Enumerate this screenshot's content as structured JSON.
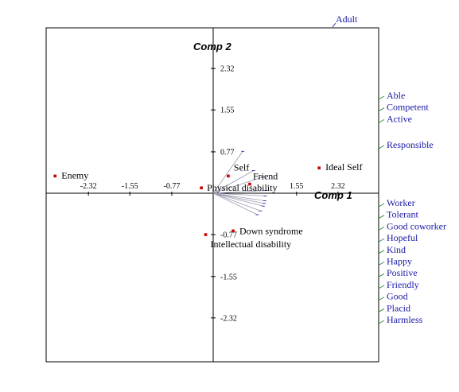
{
  "chart_data": {
    "type": "scatter",
    "title": "",
    "xlabel": "Comp 1",
    "ylabel": "Comp 2",
    "xlim": [
      -3.1,
      3.1
    ],
    "ylim": [
      -3.1,
      3.1
    ],
    "x_ticks": [
      {
        "value": -2.32,
        "label": "-2.32"
      },
      {
        "value": -1.55,
        "label": "-1.55"
      },
      {
        "value": -0.77,
        "label": "-0.77"
      },
      {
        "value": 1.55,
        "label": "1.55"
      },
      {
        "value": 2.32,
        "label": "2.32"
      }
    ],
    "y_ticks": [
      {
        "value": 2.32,
        "label": "2.32"
      },
      {
        "value": 1.55,
        "label": "1.55"
      },
      {
        "value": 0.77,
        "label": "0.77"
      },
      {
        "value": -0.77,
        "label": "-0.77"
      },
      {
        "value": -1.55,
        "label": "-1.55"
      },
      {
        "value": -2.32,
        "label": "-2.32"
      }
    ],
    "elements": [
      {
        "name": "Enemy",
        "x": -2.94,
        "y": 0.32
      },
      {
        "name": "Ideal Self",
        "x": 1.97,
        "y": 0.47
      },
      {
        "name": "Self",
        "x": 0.28,
        "y": 0.32
      },
      {
        "name": "Friend",
        "x": 0.68,
        "y": 0.17
      },
      {
        "name": "Physical disability",
        "x": -0.22,
        "y": 0.1
      },
      {
        "name": "Down syndrome",
        "x": 0.37,
        "y": -0.7
      },
      {
        "name": "Intellectual disability",
        "x": -0.14,
        "y": -0.77
      }
    ],
    "attribute_vectors": [
      {
        "x": 0.55,
        "y": 0.78
      },
      {
        "x": 0.75,
        "y": 0.42
      },
      {
        "x": 0.92,
        "y": 0.3
      },
      {
        "x": 0.98,
        "y": 0.05
      },
      {
        "x": 0.97,
        "y": -0.05
      },
      {
        "x": 0.96,
        "y": -0.14
      },
      {
        "x": 0.95,
        "y": -0.19
      },
      {
        "x": 0.93,
        "y": -0.24
      },
      {
        "x": 0.88,
        "y": -0.33
      },
      {
        "x": 0.82,
        "y": -0.4
      }
    ],
    "attributes": {
      "top": [
        "Adult"
      ],
      "right_upper": [
        "Able",
        "Competent",
        "Active"
      ],
      "right_mid": [
        "Responsible"
      ],
      "right_lower": [
        "Worker",
        "Tolerant",
        "Good coworker",
        "Hopeful",
        "Kind",
        "Happy",
        "Positive",
        "Friendly",
        "Good",
        "Placid",
        "Harmless"
      ]
    },
    "grid": false,
    "colors": {
      "points": "#cc0000",
      "attribute_labels": "#1a1aa6",
      "attribute_ticks": "#2e8b3a",
      "vectors": "#9a9ab0",
      "axes": "#000000"
    }
  }
}
